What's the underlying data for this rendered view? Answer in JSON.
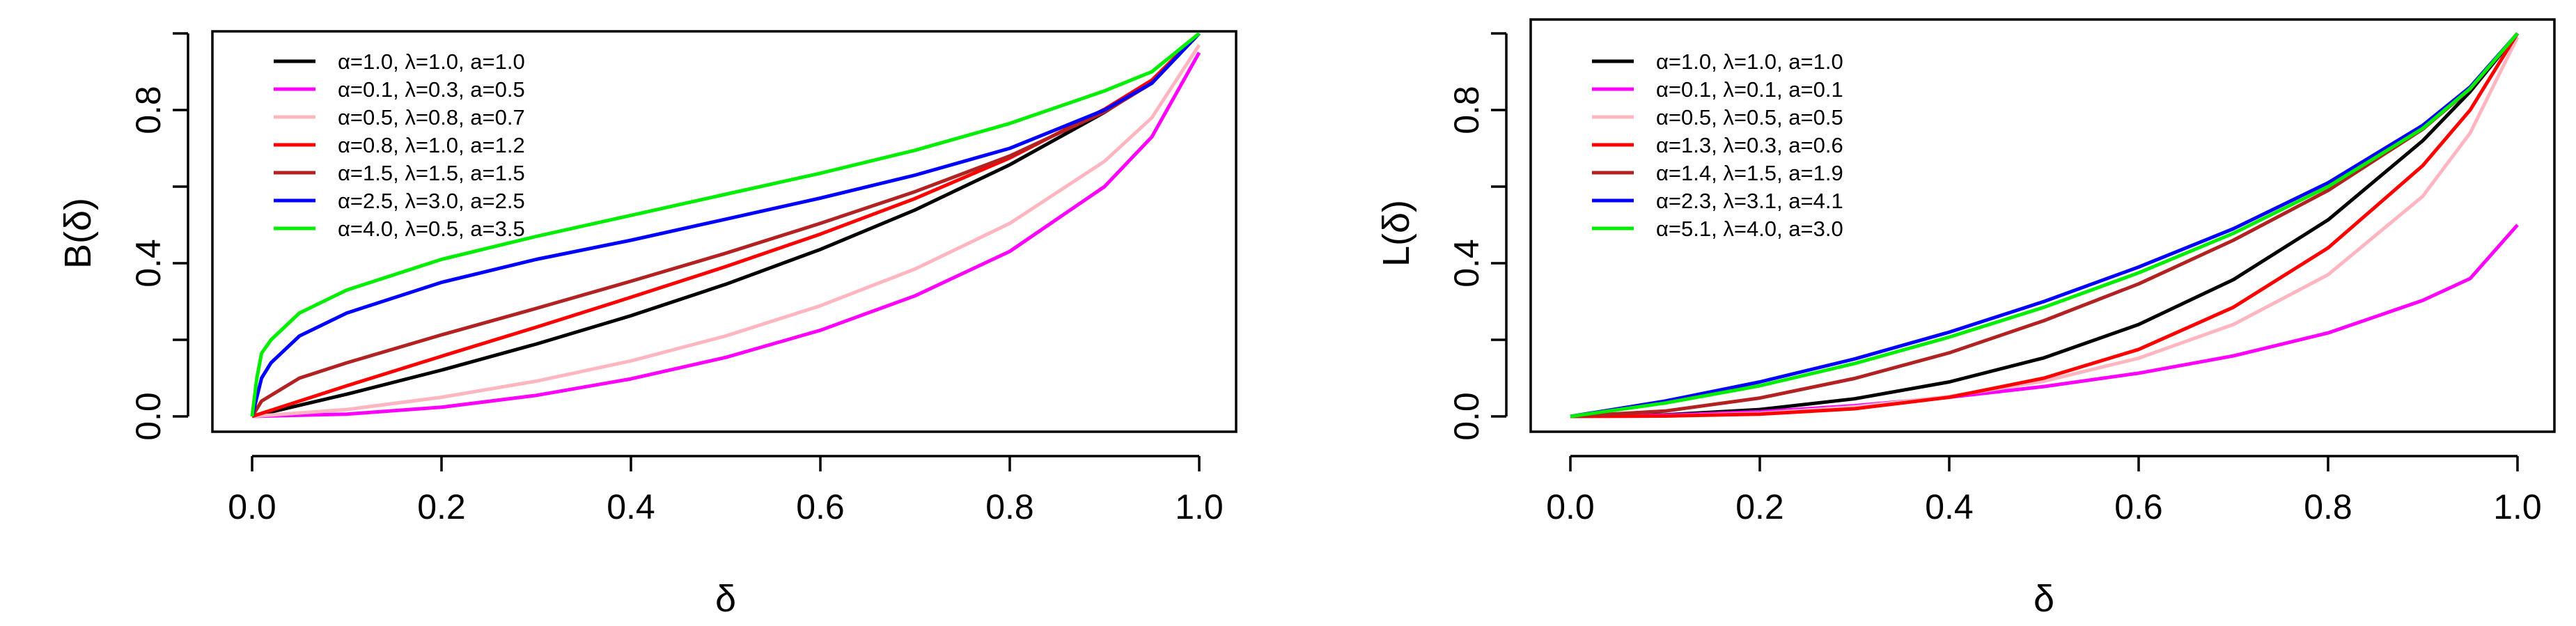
{
  "chart_data": [
    {
      "type": "line",
      "xlabel": "δ",
      "ylabel": "B(δ)",
      "xlim": [
        0,
        1
      ],
      "ylim": [
        0,
        1
      ],
      "x_ticks": [
        "0.0",
        "0.2",
        "0.4",
        "0.6",
        "0.8",
        "1.0"
      ],
      "y_ticks": [
        "0.0",
        "0.4",
        "0.8"
      ],
      "legend_position": "top-left",
      "series": [
        {
          "name": "α=1.0, λ=1.0, a=1.0",
          "color": "#000000",
          "x": [
            0,
            0.1,
            0.2,
            0.3,
            0.4,
            0.5,
            0.6,
            0.7,
            0.8,
            0.9,
            0.95,
            1.0
          ],
          "y": [
            0,
            0.058,
            0.121,
            0.189,
            0.263,
            0.345,
            0.436,
            0.539,
            0.657,
            0.794,
            0.873,
            1.0
          ]
        },
        {
          "name": "α=0.1, λ=0.3, a=0.5",
          "color": "#ff00ff",
          "x": [
            0,
            0.1,
            0.2,
            0.3,
            0.4,
            0.5,
            0.6,
            0.7,
            0.8,
            0.9,
            0.95,
            1.0
          ],
          "y": [
            0,
            0.006,
            0.024,
            0.055,
            0.098,
            0.154,
            0.225,
            0.315,
            0.431,
            0.6,
            0.73,
            0.95
          ]
        },
        {
          "name": "α=0.5, λ=0.8, a=0.7",
          "color": "#ffb6c1",
          "x": [
            0,
            0.1,
            0.2,
            0.3,
            0.4,
            0.5,
            0.6,
            0.7,
            0.8,
            0.9,
            0.95,
            1.0
          ],
          "y": [
            0,
            0.018,
            0.05,
            0.092,
            0.145,
            0.21,
            0.289,
            0.385,
            0.504,
            0.666,
            0.78,
            0.97
          ]
        },
        {
          "name": "α=0.8, λ=1.0, a=1.2",
          "color": "#ff0000",
          "x": [
            0,
            0.1,
            0.2,
            0.3,
            0.4,
            0.5,
            0.6,
            0.7,
            0.8,
            0.9,
            0.95,
            1.0
          ],
          "y": [
            0,
            0.08,
            0.157,
            0.233,
            0.311,
            0.391,
            0.476,
            0.569,
            0.675,
            0.802,
            0.878,
            1.0
          ]
        },
        {
          "name": "α=1.5, λ=1.5, a=1.5",
          "color": "#b22222",
          "x": [
            0,
            0.01,
            0.05,
            0.1,
            0.2,
            0.3,
            0.4,
            0.5,
            0.6,
            0.7,
            0.8,
            0.9,
            0.95,
            1.0
          ],
          "y": [
            0,
            0.04,
            0.1,
            0.14,
            0.213,
            0.282,
            0.353,
            0.426,
            0.504,
            0.587,
            0.68,
            0.795,
            0.87,
            1.0
          ]
        },
        {
          "name": "α=2.5, λ=3.0, a=2.5",
          "color": "#0000ff",
          "x": [
            0,
            0.01,
            0.02,
            0.05,
            0.1,
            0.2,
            0.3,
            0.4,
            0.5,
            0.6,
            0.7,
            0.8,
            0.9,
            0.95,
            1.0
          ],
          "y": [
            0,
            0.1,
            0.14,
            0.21,
            0.27,
            0.35,
            0.41,
            0.46,
            0.515,
            0.57,
            0.63,
            0.7,
            0.8,
            0.87,
            1.0
          ]
        },
        {
          "name": "α=4.0, λ=0.5, a=3.5",
          "color": "#00ee00",
          "x": [
            0,
            0.005,
            0.01,
            0.02,
            0.05,
            0.1,
            0.2,
            0.3,
            0.4,
            0.5,
            0.6,
            0.7,
            0.8,
            0.9,
            0.95,
            1.0
          ],
          "y": [
            0,
            0.1,
            0.165,
            0.2,
            0.27,
            0.33,
            0.41,
            0.47,
            0.525,
            0.58,
            0.635,
            0.695,
            0.765,
            0.85,
            0.9,
            1.0
          ]
        }
      ]
    },
    {
      "type": "line",
      "xlabel": "δ",
      "ylabel": "L(δ)",
      "xlim": [
        0,
        1
      ],
      "ylim": [
        0,
        1
      ],
      "x_ticks": [
        "0.0",
        "0.2",
        "0.4",
        "0.6",
        "0.8",
        "1.0"
      ],
      "y_ticks": [
        "0.0",
        "0.4",
        "0.8"
      ],
      "legend_position": "top-left",
      "series": [
        {
          "name": "α=1.0, λ=1.0, a=1.0",
          "color": "#000000",
          "x": [
            0,
            0.1,
            0.2,
            0.3,
            0.4,
            0.5,
            0.6,
            0.7,
            0.8,
            0.9,
            0.95,
            1.0
          ],
          "y": [
            0,
            0.004,
            0.018,
            0.046,
            0.09,
            0.153,
            0.24,
            0.357,
            0.513,
            0.72,
            0.848,
            1.0
          ]
        },
        {
          "name": "α=0.1, λ=0.1, a=0.1",
          "color": "#ff00ff",
          "x": [
            0,
            0.1,
            0.2,
            0.3,
            0.4,
            0.5,
            0.6,
            0.7,
            0.8,
            0.9,
            0.95,
            1.0
          ],
          "y": [
            0,
            0.003,
            0.012,
            0.028,
            0.05,
            0.078,
            0.113,
            0.158,
            0.218,
            0.303,
            0.36,
            0.5
          ]
        },
        {
          "name": "α=0.5, λ=0.5, a=0.5",
          "color": "#ffb6c1",
          "x": [
            0,
            0.1,
            0.2,
            0.3,
            0.4,
            0.5,
            0.6,
            0.7,
            0.8,
            0.9,
            0.95,
            1.0
          ],
          "y": [
            0,
            0.001,
            0.008,
            0.025,
            0.052,
            0.092,
            0.152,
            0.24,
            0.37,
            0.575,
            0.74,
            0.99
          ]
        },
        {
          "name": "α=1.3, λ=0.3, a=0.6",
          "color": "#ff0000",
          "x": [
            0,
            0.1,
            0.2,
            0.3,
            0.4,
            0.5,
            0.6,
            0.7,
            0.8,
            0.9,
            0.95,
            1.0
          ],
          "y": [
            0,
            0.001,
            0.006,
            0.02,
            0.05,
            0.1,
            0.175,
            0.285,
            0.44,
            0.655,
            0.8,
            1.0
          ]
        },
        {
          "name": "α=1.4, λ=1.5, a=1.9",
          "color": "#b22222",
          "x": [
            0,
            0.1,
            0.2,
            0.3,
            0.4,
            0.5,
            0.6,
            0.7,
            0.8,
            0.9,
            0.95,
            1.0
          ],
          "y": [
            0,
            0.014,
            0.048,
            0.099,
            0.166,
            0.25,
            0.346,
            0.46,
            0.59,
            0.75,
            0.855,
            1.0
          ]
        },
        {
          "name": "α=2.3, λ=3.1, a=4.1",
          "color": "#0000ff",
          "x": [
            0,
            0.1,
            0.2,
            0.3,
            0.4,
            0.5,
            0.6,
            0.7,
            0.8,
            0.9,
            0.95,
            1.0
          ],
          "y": [
            0,
            0.04,
            0.09,
            0.15,
            0.22,
            0.3,
            0.39,
            0.49,
            0.61,
            0.76,
            0.86,
            1.0
          ]
        },
        {
          "name": "α=5.1, λ=4.0, a=3.0",
          "color": "#00ee00",
          "x": [
            0,
            0.1,
            0.2,
            0.3,
            0.4,
            0.5,
            0.6,
            0.7,
            0.8,
            0.9,
            0.95,
            1.0
          ],
          "y": [
            0,
            0.035,
            0.08,
            0.138,
            0.207,
            0.285,
            0.375,
            0.478,
            0.6,
            0.752,
            0.856,
            1.0
          ]
        }
      ]
    }
  ]
}
